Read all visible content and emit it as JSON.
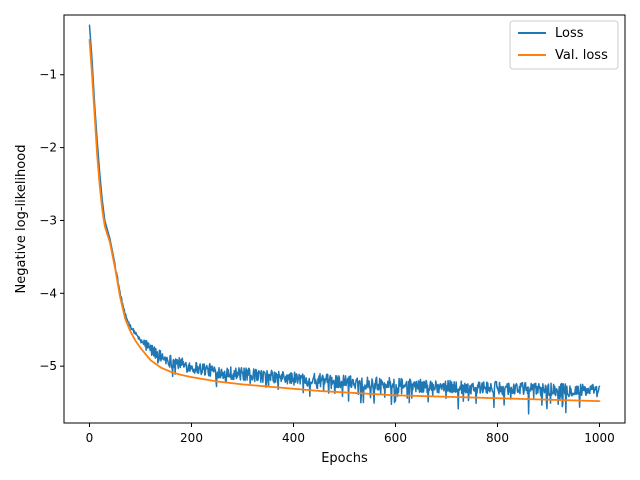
{
  "chart_data": {
    "type": "line",
    "title": "",
    "xlabel": "Epochs",
    "ylabel": "Negative log-likelihood",
    "xlim": [
      -50,
      1050
    ],
    "ylim": [
      -5.78,
      -0.18
    ],
    "x_ticks": [
      0,
      200,
      400,
      600,
      800,
      1000
    ],
    "x_tick_labels": [
      "0",
      "200",
      "400",
      "600",
      "800",
      "1000"
    ],
    "y_ticks": [
      -1,
      -2,
      -3,
      -4,
      -5
    ],
    "y_tick_labels": [
      "−1",
      "−2",
      "−3",
      "−4",
      "−5"
    ],
    "grid": false,
    "legend_position": "top-right",
    "series": [
      {
        "name": "Loss",
        "color": "#1f77b4",
        "style": "noisy",
        "points": [
          [
            0,
            -0.32
          ],
          [
            5,
            -0.8
          ],
          [
            10,
            -1.4
          ],
          [
            15,
            -1.9
          ],
          [
            20,
            -2.35
          ],
          [
            25,
            -2.72
          ],
          [
            30,
            -3.0
          ],
          [
            40,
            -3.25
          ],
          [
            50,
            -3.6
          ],
          [
            60,
            -4.0
          ],
          [
            70,
            -4.3
          ],
          [
            80,
            -4.45
          ],
          [
            90,
            -4.55
          ],
          [
            100,
            -4.65
          ],
          [
            120,
            -4.78
          ],
          [
            140,
            -4.88
          ],
          [
            160,
            -4.94
          ],
          [
            180,
            -4.98
          ],
          [
            200,
            -5.02
          ],
          [
            250,
            -5.08
          ],
          [
            300,
            -5.12
          ],
          [
            350,
            -5.15
          ],
          [
            400,
            -5.18
          ],
          [
            450,
            -5.2
          ],
          [
            500,
            -5.22
          ],
          [
            550,
            -5.24
          ],
          [
            600,
            -5.26
          ],
          [
            650,
            -5.28
          ],
          [
            700,
            -5.29
          ],
          [
            750,
            -5.3
          ],
          [
            800,
            -5.31
          ],
          [
            850,
            -5.32
          ],
          [
            900,
            -5.33
          ],
          [
            950,
            -5.34
          ],
          [
            1000,
            -5.35
          ]
        ]
      },
      {
        "name": "Val. loss",
        "color": "#ff7f0e",
        "style": "smooth",
        "points": [
          [
            0,
            -0.52
          ],
          [
            5,
            -1.0
          ],
          [
            10,
            -1.55
          ],
          [
            15,
            -2.1
          ],
          [
            20,
            -2.52
          ],
          [
            25,
            -2.85
          ],
          [
            30,
            -3.08
          ],
          [
            40,
            -3.3
          ],
          [
            50,
            -3.65
          ],
          [
            60,
            -4.05
          ],
          [
            70,
            -4.35
          ],
          [
            80,
            -4.52
          ],
          [
            90,
            -4.65
          ],
          [
            100,
            -4.75
          ],
          [
            120,
            -4.92
          ],
          [
            140,
            -5.02
          ],
          [
            160,
            -5.08
          ],
          [
            180,
            -5.12
          ],
          [
            200,
            -5.15
          ],
          [
            250,
            -5.21
          ],
          [
            300,
            -5.25
          ],
          [
            350,
            -5.28
          ],
          [
            400,
            -5.31
          ],
          [
            450,
            -5.34
          ],
          [
            500,
            -5.36
          ],
          [
            550,
            -5.38
          ],
          [
            600,
            -5.4
          ],
          [
            650,
            -5.41
          ],
          [
            700,
            -5.42
          ],
          [
            750,
            -5.43
          ],
          [
            800,
            -5.44
          ],
          [
            850,
            -5.45
          ],
          [
            900,
            -5.46
          ],
          [
            950,
            -5.47
          ],
          [
            1000,
            -5.48
          ]
        ]
      }
    ]
  }
}
